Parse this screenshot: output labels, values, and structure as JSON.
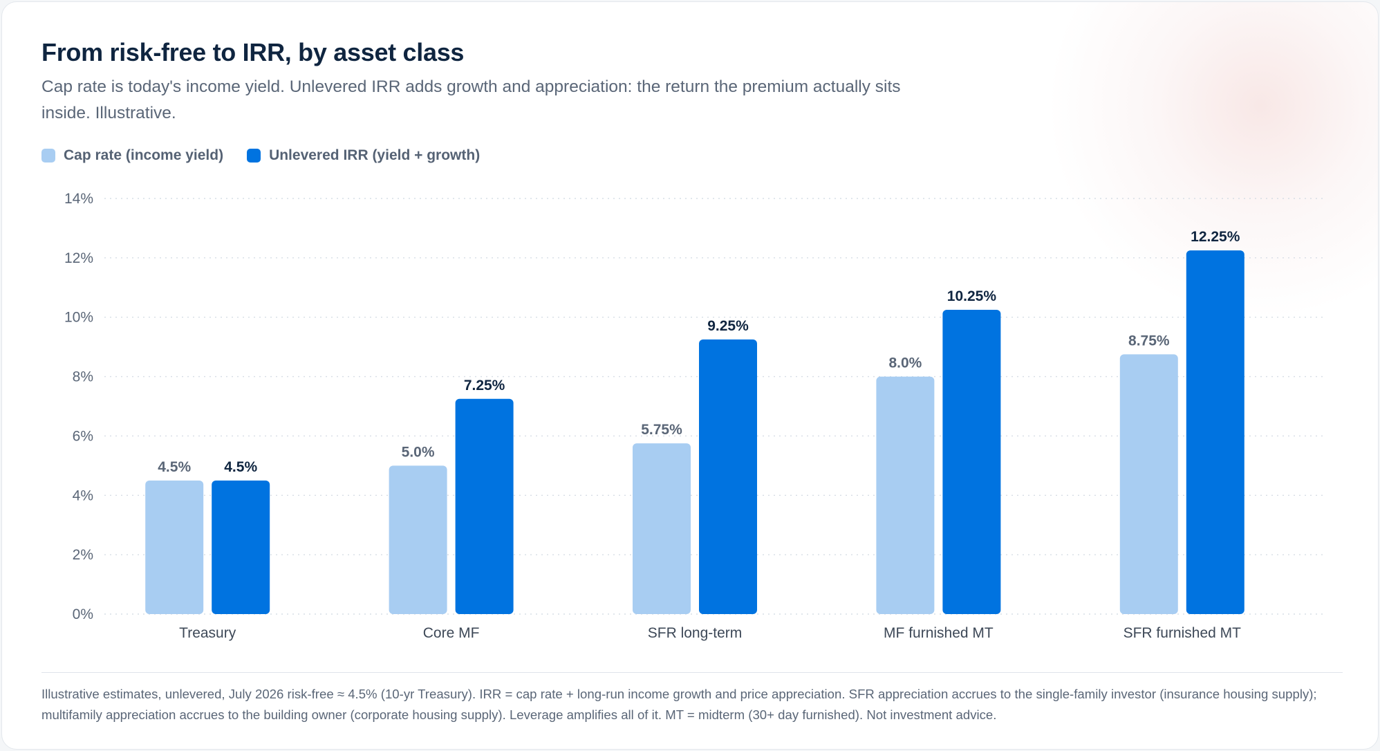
{
  "header": {
    "title": "From risk-free to IRR, by asset class",
    "subtitle": "Cap rate is today's income yield. Unlevered IRR adds growth and appreciation: the return the premium actually sits inside. Illustrative."
  },
  "legend": {
    "items": [
      {
        "label": "Cap rate (income yield)",
        "color": "#a8cdf2"
      },
      {
        "label": "Unlevered IRR (yield + growth)",
        "color": "#0073e0"
      }
    ]
  },
  "chart_data": {
    "type": "bar",
    "categories": [
      "Treasury",
      "Core MF",
      "SFR long-term",
      "MF furnished MT",
      "SFR furnished MT"
    ],
    "series": [
      {
        "name": "Cap rate (income yield)",
        "values": [
          4.5,
          5.0,
          5.75,
          8.0,
          8.75
        ],
        "labels": [
          "4.5%",
          "5.0%",
          "5.75%",
          "8.0%",
          "8.75%"
        ],
        "color": "#a8cdf2",
        "label_color": "#5a6677"
      },
      {
        "name": "Unlevered IRR (yield + growth)",
        "values": [
          4.5,
          7.25,
          9.25,
          10.25,
          12.25
        ],
        "labels": [
          "4.5%",
          "7.25%",
          "9.25%",
          "10.25%",
          "12.25%"
        ],
        "color": "#0073e0",
        "label_color": "#0f2540"
      }
    ],
    "ylim": [
      0,
      14
    ],
    "yticks": [
      0,
      2,
      4,
      6,
      8,
      10,
      12,
      14
    ],
    "ytick_labels": [
      "0%",
      "2%",
      "4%",
      "6%",
      "8%",
      "10%",
      "12%",
      "14%"
    ],
    "grid": true,
    "legend_position": "top-left"
  },
  "footnote": {
    "text": "Illustrative estimates, unlevered, July 2026 risk-free ≈ 4.5% (10-yr Treasury). IRR = cap rate + long-run income growth and price appreciation. SFR appreciation accrues to the single-family investor (insurance housing supply); multifamily appreciation accrues to the building owner (corporate housing supply). Leverage amplifies all of it. MT = midterm (30+ day furnished). Not investment advice."
  }
}
